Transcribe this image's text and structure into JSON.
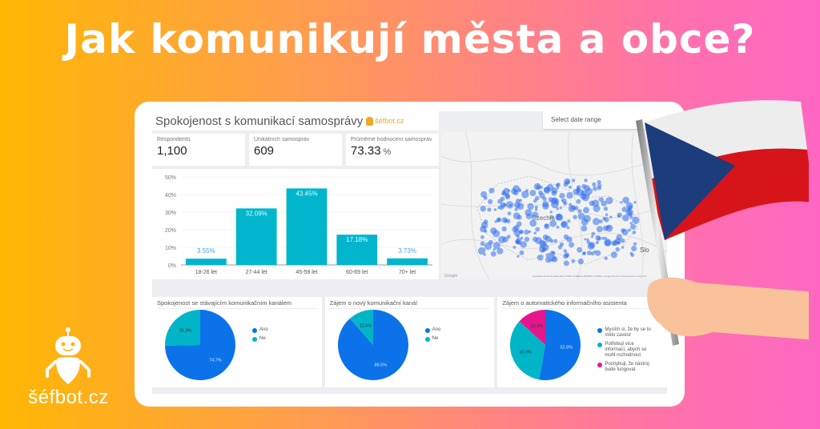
{
  "headline": "Jak komunikují města a obce?",
  "brand": {
    "logo_text": "šéfbot.cz",
    "mini_logo_text": "šéfbot.cz"
  },
  "dashboard": {
    "title": "Spokojenost s komunikací samosprávy",
    "date_range": {
      "placeholder": "Select date range"
    },
    "kpis": [
      {
        "label": "Respondentů",
        "value": "1,100",
        "unit": ""
      },
      {
        "label": "Unikátních samospráv",
        "value": "609",
        "unit": ""
      },
      {
        "label": "Průměrné hodnocení samospráv",
        "value": "73.33",
        "unit": "%"
      }
    ],
    "map": {
      "country_label": "Czechia",
      "neighbor_label": "Slo",
      "zoom_in": "+",
      "zoom_out": "−",
      "attribution": "Keyboard shortcuts   Map data ©2022 GeoBasis-DE/BKG (©2009), Google   Terms of Use   Report a map error",
      "google": "Google"
    }
  },
  "chart_data": [
    {
      "type": "bar",
      "title": "",
      "categories": [
        "18-26 let",
        "27-44 let",
        "45-59 let",
        "60-69 let",
        "70+ let"
      ],
      "values": [
        3.55,
        32.09,
        43.45,
        17.18,
        3.73
      ],
      "value_labels": [
        "3.55%",
        "32.09%",
        "43.45%",
        "17.18%",
        "3.73%"
      ],
      "yticks": [
        "0%",
        "10%",
        "20%",
        "30%",
        "40%",
        "50%"
      ],
      "ylim": [
        0,
        50
      ],
      "xlabel": "",
      "ylabel": "",
      "grid": true,
      "color": "#00b5cc"
    },
    {
      "type": "pie",
      "title": "Spokojenost se stávajícím komunikačním kanálem",
      "labels": [
        "Ano",
        "Ne"
      ],
      "values": [
        74.7,
        25.3
      ],
      "value_labels": [
        "74.7%",
        "25.3%"
      ],
      "colors": [
        "#0b72ea",
        "#00b5c8"
      ],
      "legend_position": "right"
    },
    {
      "type": "pie",
      "title": "Zájem o nový komunikační kanál",
      "labels": [
        "Ano",
        "Ne"
      ],
      "values": [
        88.5,
        11.5
      ],
      "value_labels": [
        "88.5%",
        "11.5%"
      ],
      "colors": [
        "#0b72ea",
        "#00b5c8"
      ],
      "legend_position": "right"
    },
    {
      "type": "pie",
      "title": "Zájem o automatického informačního asistenta",
      "labels": [
        "Myslím si, že by se to mělo zavést",
        "Potřebuji více informací, abych se mohl rozhodnout",
        "Pochybuji, že nástroj bude fungovat"
      ],
      "values": [
        52.8,
        33.9,
        13.3
      ],
      "value_labels": [
        "52.8%",
        "33.9%",
        "13.3%"
      ],
      "colors": [
        "#0b72ea",
        "#00b5c8",
        "#e6168f"
      ],
      "legend_position": "right"
    }
  ]
}
